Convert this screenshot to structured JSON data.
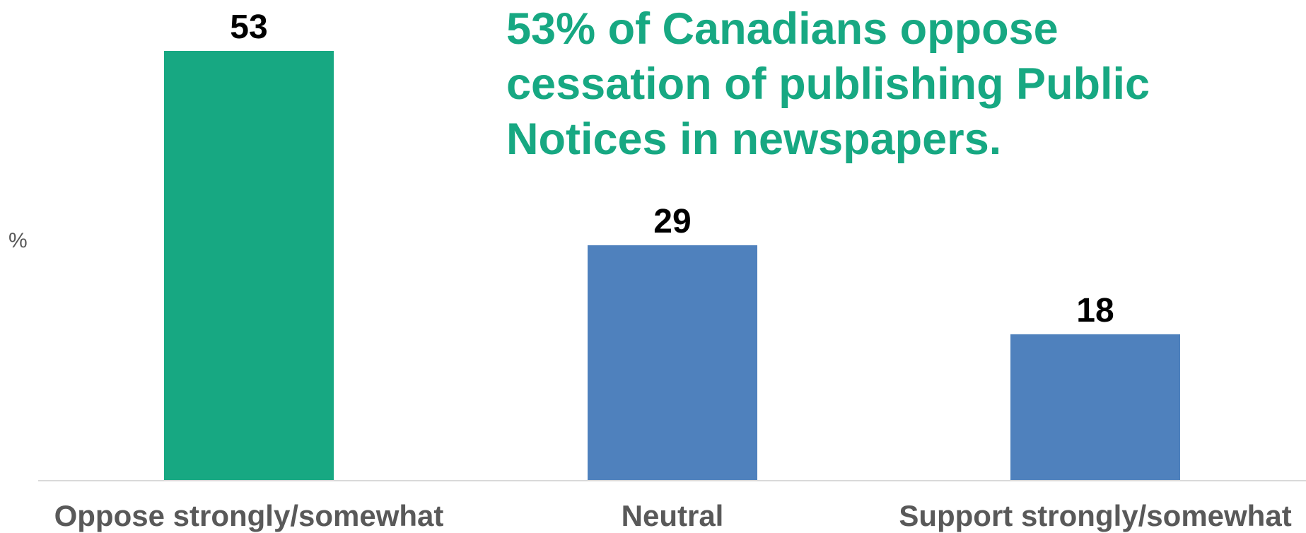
{
  "chart_data": {
    "type": "bar",
    "categories": [
      "Oppose strongly/somewhat",
      "Neutral",
      "Support strongly/somewhat"
    ],
    "values": [
      53,
      29,
      18
    ],
    "data_labels": [
      "53",
      "29",
      "18"
    ],
    "ylabel": "%",
    "xlabel": "",
    "ylim": [
      0,
      53
    ],
    "grid": false,
    "legend": "none",
    "bar_colors": [
      "#17a882",
      "#4f81bd",
      "#4f81bd"
    ],
    "axis_color": "#d9d9d9",
    "annotation": "53% of Canadians oppose cessation of publishing Public Notices in newspapers.",
    "annotation_color": "#17a882"
  }
}
